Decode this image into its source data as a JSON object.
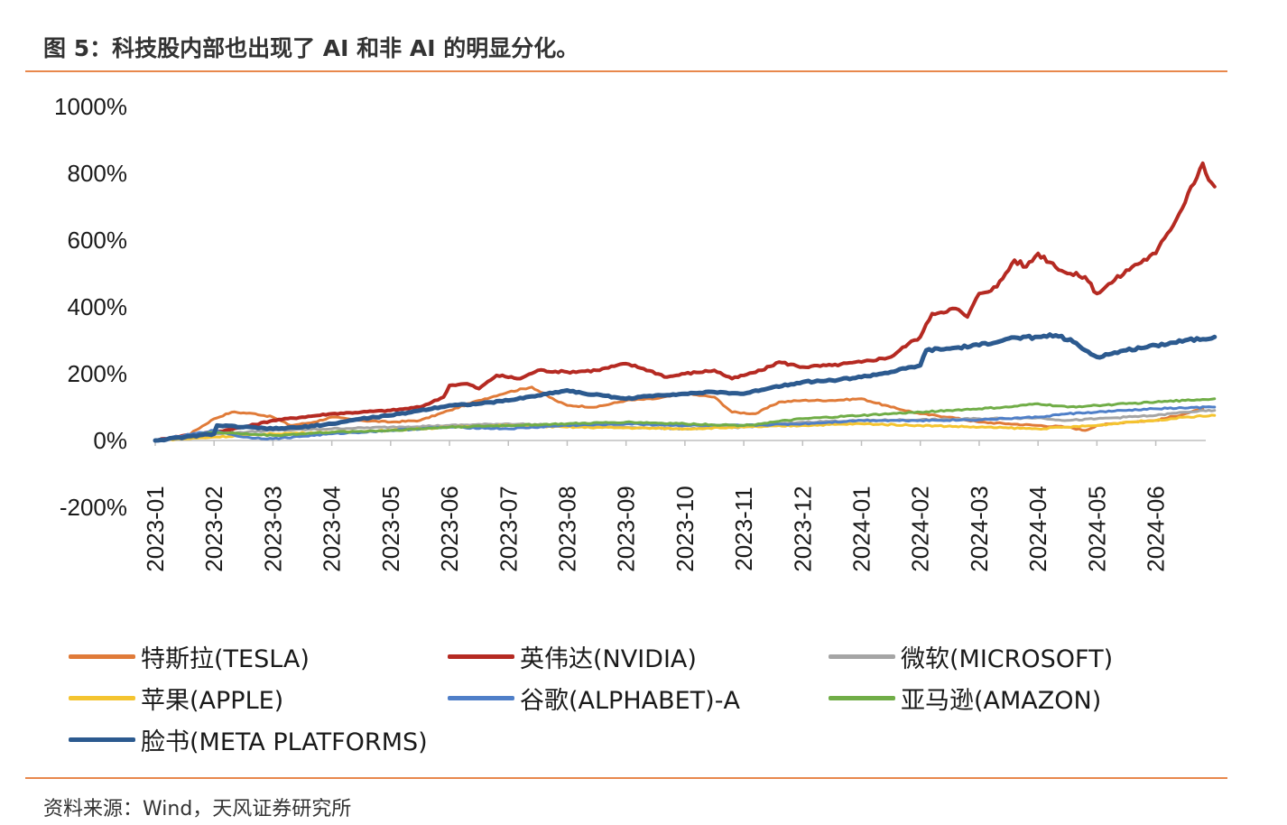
{
  "header": {
    "title": "图 5：科技股内部也出现了 AI 和非 AI 的明显分化。"
  },
  "footer": {
    "source": "资料来源：Wind，天风证券研究所"
  },
  "chart_data": {
    "type": "line",
    "title": "图 5：科技股内部也出现了 AI 和非 AI 的明显分化。",
    "xlabel": "",
    "ylabel": "",
    "ylim": [
      -200,
      1000
    ],
    "y_ticks": [
      -200,
      0,
      200,
      400,
      600,
      800,
      1000
    ],
    "y_tick_labels": [
      "-200%",
      "0%",
      "200%",
      "400%",
      "600%",
      "800%",
      "1000%"
    ],
    "x_domain": [
      0,
      17.8
    ],
    "x_ticks": [
      0,
      1,
      2,
      3,
      4,
      5,
      6,
      7,
      8,
      9,
      10,
      11,
      12,
      13,
      14,
      15,
      16,
      17
    ],
    "x_tick_labels": [
      "2023-01",
      "2023-02",
      "2023-03",
      "2023-04",
      "2023-05",
      "2023-06",
      "2023-07",
      "2023-08",
      "2023-09",
      "2023-10",
      "2023-11",
      "2023-12",
      "2024-01",
      "2024-02",
      "2024-03",
      "2024-04",
      "2024-05",
      "2024-06"
    ],
    "x_unit": "months since 2023-01",
    "legend_position": "bottom",
    "series": [
      {
        "name": "特斯拉(TESLA)",
        "color": "#e07b39",
        "width": 3,
        "points": [
          [
            0,
            0
          ],
          [
            0.5,
            10
          ],
          [
            1,
            65
          ],
          [
            1.3,
            85
          ],
          [
            1.7,
            80
          ],
          [
            2,
            70
          ],
          [
            2.3,
            45
          ],
          [
            2.7,
            55
          ],
          [
            3,
            70
          ],
          [
            3.5,
            60
          ],
          [
            4,
            55
          ],
          [
            4.5,
            60
          ],
          [
            5,
            90
          ],
          [
            5.5,
            120
          ],
          [
            6,
            145
          ],
          [
            6.4,
            160
          ],
          [
            6.8,
            120
          ],
          [
            7,
            105
          ],
          [
            7.5,
            100
          ],
          [
            8,
            120
          ],
          [
            8.5,
            125
          ],
          [
            9,
            140
          ],
          [
            9.5,
            130
          ],
          [
            9.8,
            85
          ],
          [
            10.2,
            80
          ],
          [
            10.6,
            115
          ],
          [
            11,
            120
          ],
          [
            11.5,
            120
          ],
          [
            12,
            125
          ],
          [
            12.5,
            100
          ],
          [
            13,
            80
          ],
          [
            13.5,
            70
          ],
          [
            14,
            55
          ],
          [
            14.5,
            50
          ],
          [
            15,
            45
          ],
          [
            15.5,
            40
          ],
          [
            15.8,
            30
          ],
          [
            16,
            45
          ],
          [
            16.5,
            55
          ],
          [
            17,
            60
          ],
          [
            17.5,
            80
          ],
          [
            17.8,
            95
          ]
        ]
      },
      {
        "name": "英伟达(NVIDIA)",
        "color": "#b52a22",
        "width": 4,
        "points": [
          [
            0,
            0
          ],
          [
            0.5,
            15
          ],
          [
            1,
            25
          ],
          [
            1.5,
            40
          ],
          [
            2,
            60
          ],
          [
            2.5,
            70
          ],
          [
            3,
            80
          ],
          [
            3.5,
            85
          ],
          [
            4,
            90
          ],
          [
            4.5,
            100
          ],
          [
            4.9,
            130
          ],
          [
            5,
            165
          ],
          [
            5.3,
            170
          ],
          [
            5.5,
            155
          ],
          [
            5.8,
            195
          ],
          [
            6.2,
            185
          ],
          [
            6.5,
            210
          ],
          [
            7,
            205
          ],
          [
            7.5,
            210
          ],
          [
            8,
            230
          ],
          [
            8.3,
            215
          ],
          [
            8.7,
            190
          ],
          [
            9,
            200
          ],
          [
            9.5,
            210
          ],
          [
            9.8,
            185
          ],
          [
            10,
            195
          ],
          [
            10.3,
            210
          ],
          [
            10.6,
            235
          ],
          [
            11,
            220
          ],
          [
            11.5,
            225
          ],
          [
            12,
            235
          ],
          [
            12.5,
            250
          ],
          [
            12.8,
            290
          ],
          [
            13,
            310
          ],
          [
            13.2,
            380
          ],
          [
            13.6,
            395
          ],
          [
            13.8,
            370
          ],
          [
            14,
            440
          ],
          [
            14.3,
            460
          ],
          [
            14.6,
            540
          ],
          [
            14.8,
            520
          ],
          [
            15,
            560
          ],
          [
            15.5,
            500
          ],
          [
            15.8,
            490
          ],
          [
            16,
            440
          ],
          [
            16.3,
            480
          ],
          [
            16.6,
            520
          ],
          [
            17,
            560
          ],
          [
            17.2,
            620
          ],
          [
            17.4,
            680
          ],
          [
            17.6,
            760
          ],
          [
            17.8,
            830
          ],
          [
            17.9,
            780
          ],
          [
            18,
            760
          ]
        ]
      },
      {
        "name": "微软(MICROSOFT)",
        "color": "#a5a5a5",
        "width": 3,
        "points": [
          [
            0,
            0
          ],
          [
            1,
            20
          ],
          [
            2,
            30
          ],
          [
            3,
            35
          ],
          [
            4,
            40
          ],
          [
            5,
            45
          ],
          [
            6,
            50
          ],
          [
            7,
            45
          ],
          [
            8,
            40
          ],
          [
            9,
            35
          ],
          [
            10,
            40
          ],
          [
            11,
            55
          ],
          [
            12,
            60
          ],
          [
            13,
            62
          ],
          [
            14,
            65
          ],
          [
            15,
            68
          ],
          [
            15.5,
            60
          ],
          [
            16,
            65
          ],
          [
            16.5,
            70
          ],
          [
            17,
            75
          ],
          [
            17.5,
            85
          ],
          [
            18,
            90
          ]
        ]
      },
      {
        "name": "苹果(APPLE)",
        "color": "#f4c430",
        "width": 3,
        "points": [
          [
            0,
            0
          ],
          [
            1,
            10
          ],
          [
            2,
            20
          ],
          [
            3,
            25
          ],
          [
            4,
            30
          ],
          [
            5,
            40
          ],
          [
            6,
            45
          ],
          [
            7,
            40
          ],
          [
            8,
            38
          ],
          [
            9,
            35
          ],
          [
            10,
            40
          ],
          [
            11,
            45
          ],
          [
            12,
            50
          ],
          [
            13,
            45
          ],
          [
            14,
            40
          ],
          [
            15,
            35
          ],
          [
            15.5,
            40
          ],
          [
            16,
            45
          ],
          [
            16.5,
            55
          ],
          [
            17,
            60
          ],
          [
            17.5,
            70
          ],
          [
            18,
            75
          ]
        ]
      },
      {
        "name": "谷歌(ALPHABET)-A",
        "color": "#4f7fc8",
        "width": 3,
        "points": [
          [
            0,
            0
          ],
          [
            0.5,
            15
          ],
          [
            1,
            30
          ],
          [
            1.5,
            10
          ],
          [
            2,
            5
          ],
          [
            3,
            20
          ],
          [
            4,
            30
          ],
          [
            5,
            40
          ],
          [
            6,
            35
          ],
          [
            7,
            45
          ],
          [
            8,
            50
          ],
          [
            9,
            45
          ],
          [
            10,
            45
          ],
          [
            11,
            50
          ],
          [
            12,
            60
          ],
          [
            13,
            60
          ],
          [
            14,
            62
          ],
          [
            15,
            70
          ],
          [
            15.5,
            80
          ],
          [
            16,
            85
          ],
          [
            16.5,
            90
          ],
          [
            17,
            95
          ],
          [
            18,
            100
          ]
        ]
      },
      {
        "name": "亚马逊(AMAZON)",
        "color": "#70ad47",
        "width": 3,
        "points": [
          [
            0,
            0
          ],
          [
            0.5,
            10
          ],
          [
            1,
            25
          ],
          [
            1.5,
            20
          ],
          [
            2,
            15
          ],
          [
            2.5,
            20
          ],
          [
            3,
            25
          ],
          [
            4,
            30
          ],
          [
            5,
            40
          ],
          [
            6,
            45
          ],
          [
            7,
            50
          ],
          [
            8,
            55
          ],
          [
            9,
            50
          ],
          [
            10,
            45
          ],
          [
            10.5,
            55
          ],
          [
            11,
            65
          ],
          [
            12,
            75
          ],
          [
            12.5,
            80
          ],
          [
            13,
            85
          ],
          [
            13.5,
            90
          ],
          [
            14,
            95
          ],
          [
            14.5,
            100
          ],
          [
            15,
            110
          ],
          [
            15.5,
            100
          ],
          [
            16,
            105
          ],
          [
            16.5,
            110
          ],
          [
            17,
            115
          ],
          [
            17.5,
            120
          ],
          [
            18,
            125
          ]
        ]
      },
      {
        "name": "脸书(META PLATFORMS)",
        "color": "#2c5a8f",
        "width": 5,
        "points": [
          [
            0,
            0
          ],
          [
            0.5,
            10
          ],
          [
            1,
            20
          ],
          [
            1.05,
            45
          ],
          [
            1.5,
            40
          ],
          [
            2,
            35
          ],
          [
            2.5,
            40
          ],
          [
            3,
            50
          ],
          [
            3.5,
            65
          ],
          [
            4,
            75
          ],
          [
            4.5,
            90
          ],
          [
            5,
            105
          ],
          [
            5.5,
            110
          ],
          [
            6,
            120
          ],
          [
            6.5,
            135
          ],
          [
            7,
            150
          ],
          [
            7.3,
            140
          ],
          [
            7.6,
            135
          ],
          [
            8,
            125
          ],
          [
            8.5,
            135
          ],
          [
            9,
            140
          ],
          [
            9.5,
            145
          ],
          [
            10,
            140
          ],
          [
            10.5,
            160
          ],
          [
            11,
            175
          ],
          [
            11.5,
            180
          ],
          [
            12,
            190
          ],
          [
            12.5,
            205
          ],
          [
            13,
            225
          ],
          [
            13.1,
            270
          ],
          [
            13.5,
            275
          ],
          [
            14,
            285
          ],
          [
            14.5,
            305
          ],
          [
            15,
            310
          ],
          [
            15.3,
            315
          ],
          [
            15.6,
            295
          ],
          [
            15.8,
            270
          ],
          [
            16,
            250
          ],
          [
            16.5,
            270
          ],
          [
            17,
            285
          ],
          [
            17.5,
            300
          ],
          [
            18,
            310
          ]
        ]
      }
    ]
  }
}
